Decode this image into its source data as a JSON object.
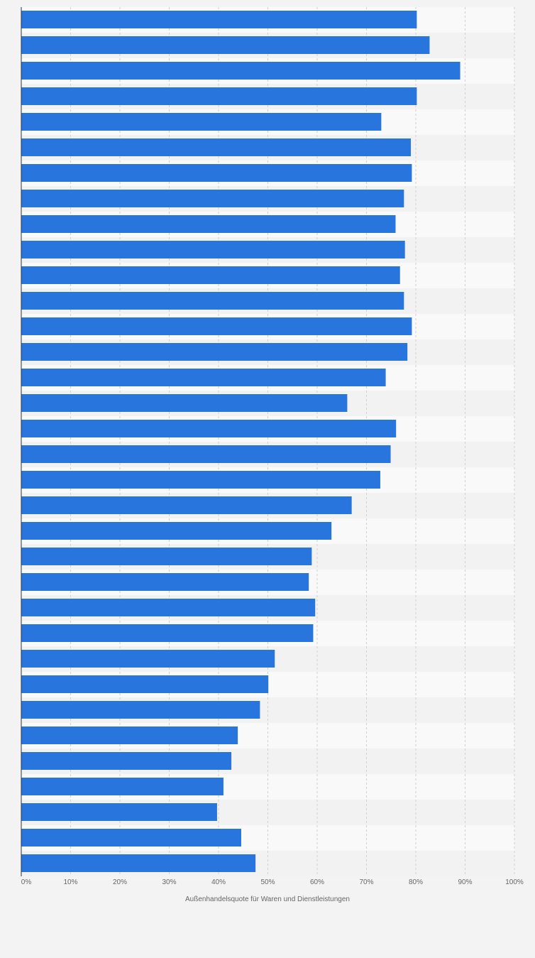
{
  "chart_data": {
    "type": "bar",
    "orientation": "horizontal",
    "title": "",
    "xlabel": "Außenhandelsquote für Waren und Dienstleistungen",
    "ylabel": "",
    "xlim": [
      0,
      100
    ],
    "x_ticks": [
      0,
      10,
      20,
      30,
      40,
      50,
      60,
      70,
      80,
      90,
      100
    ],
    "x_tick_labels": [
      "0%",
      "10%",
      "20%",
      "30%",
      "40%",
      "50%",
      "60%",
      "70%",
      "80%",
      "90%",
      "100%"
    ],
    "grid": true,
    "legend": "none",
    "bar_color": "#2876dd",
    "values": [
      80.2,
      82.8,
      89.0,
      80.2,
      73.0,
      79.0,
      79.2,
      77.6,
      75.9,
      77.8,
      76.8,
      77.6,
      79.2,
      78.3,
      73.9,
      66.1,
      76.0,
      74.9,
      72.8,
      67.0,
      62.9,
      58.9,
      58.3,
      59.6,
      59.2,
      51.4,
      50.1,
      48.4,
      43.9,
      42.6,
      41.0,
      39.7,
      44.6,
      47.5
    ]
  }
}
